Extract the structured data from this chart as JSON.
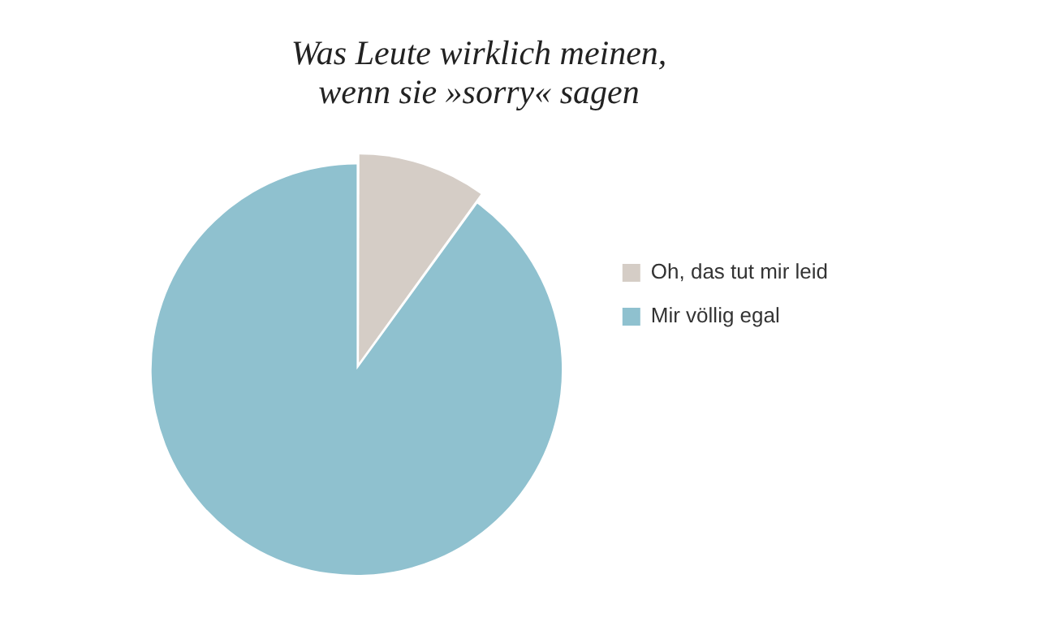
{
  "chart_data": {
    "type": "pie",
    "title": "Was Leute wirklich meinen,\nwenn sie »sorry« sagen",
    "categories": [
      "Oh, das tut mir leid",
      "Mir völlig egal"
    ],
    "values": [
      10,
      90
    ],
    "colors": [
      "#d5cdc6",
      "#8fc1cf"
    ],
    "legend": "right"
  }
}
